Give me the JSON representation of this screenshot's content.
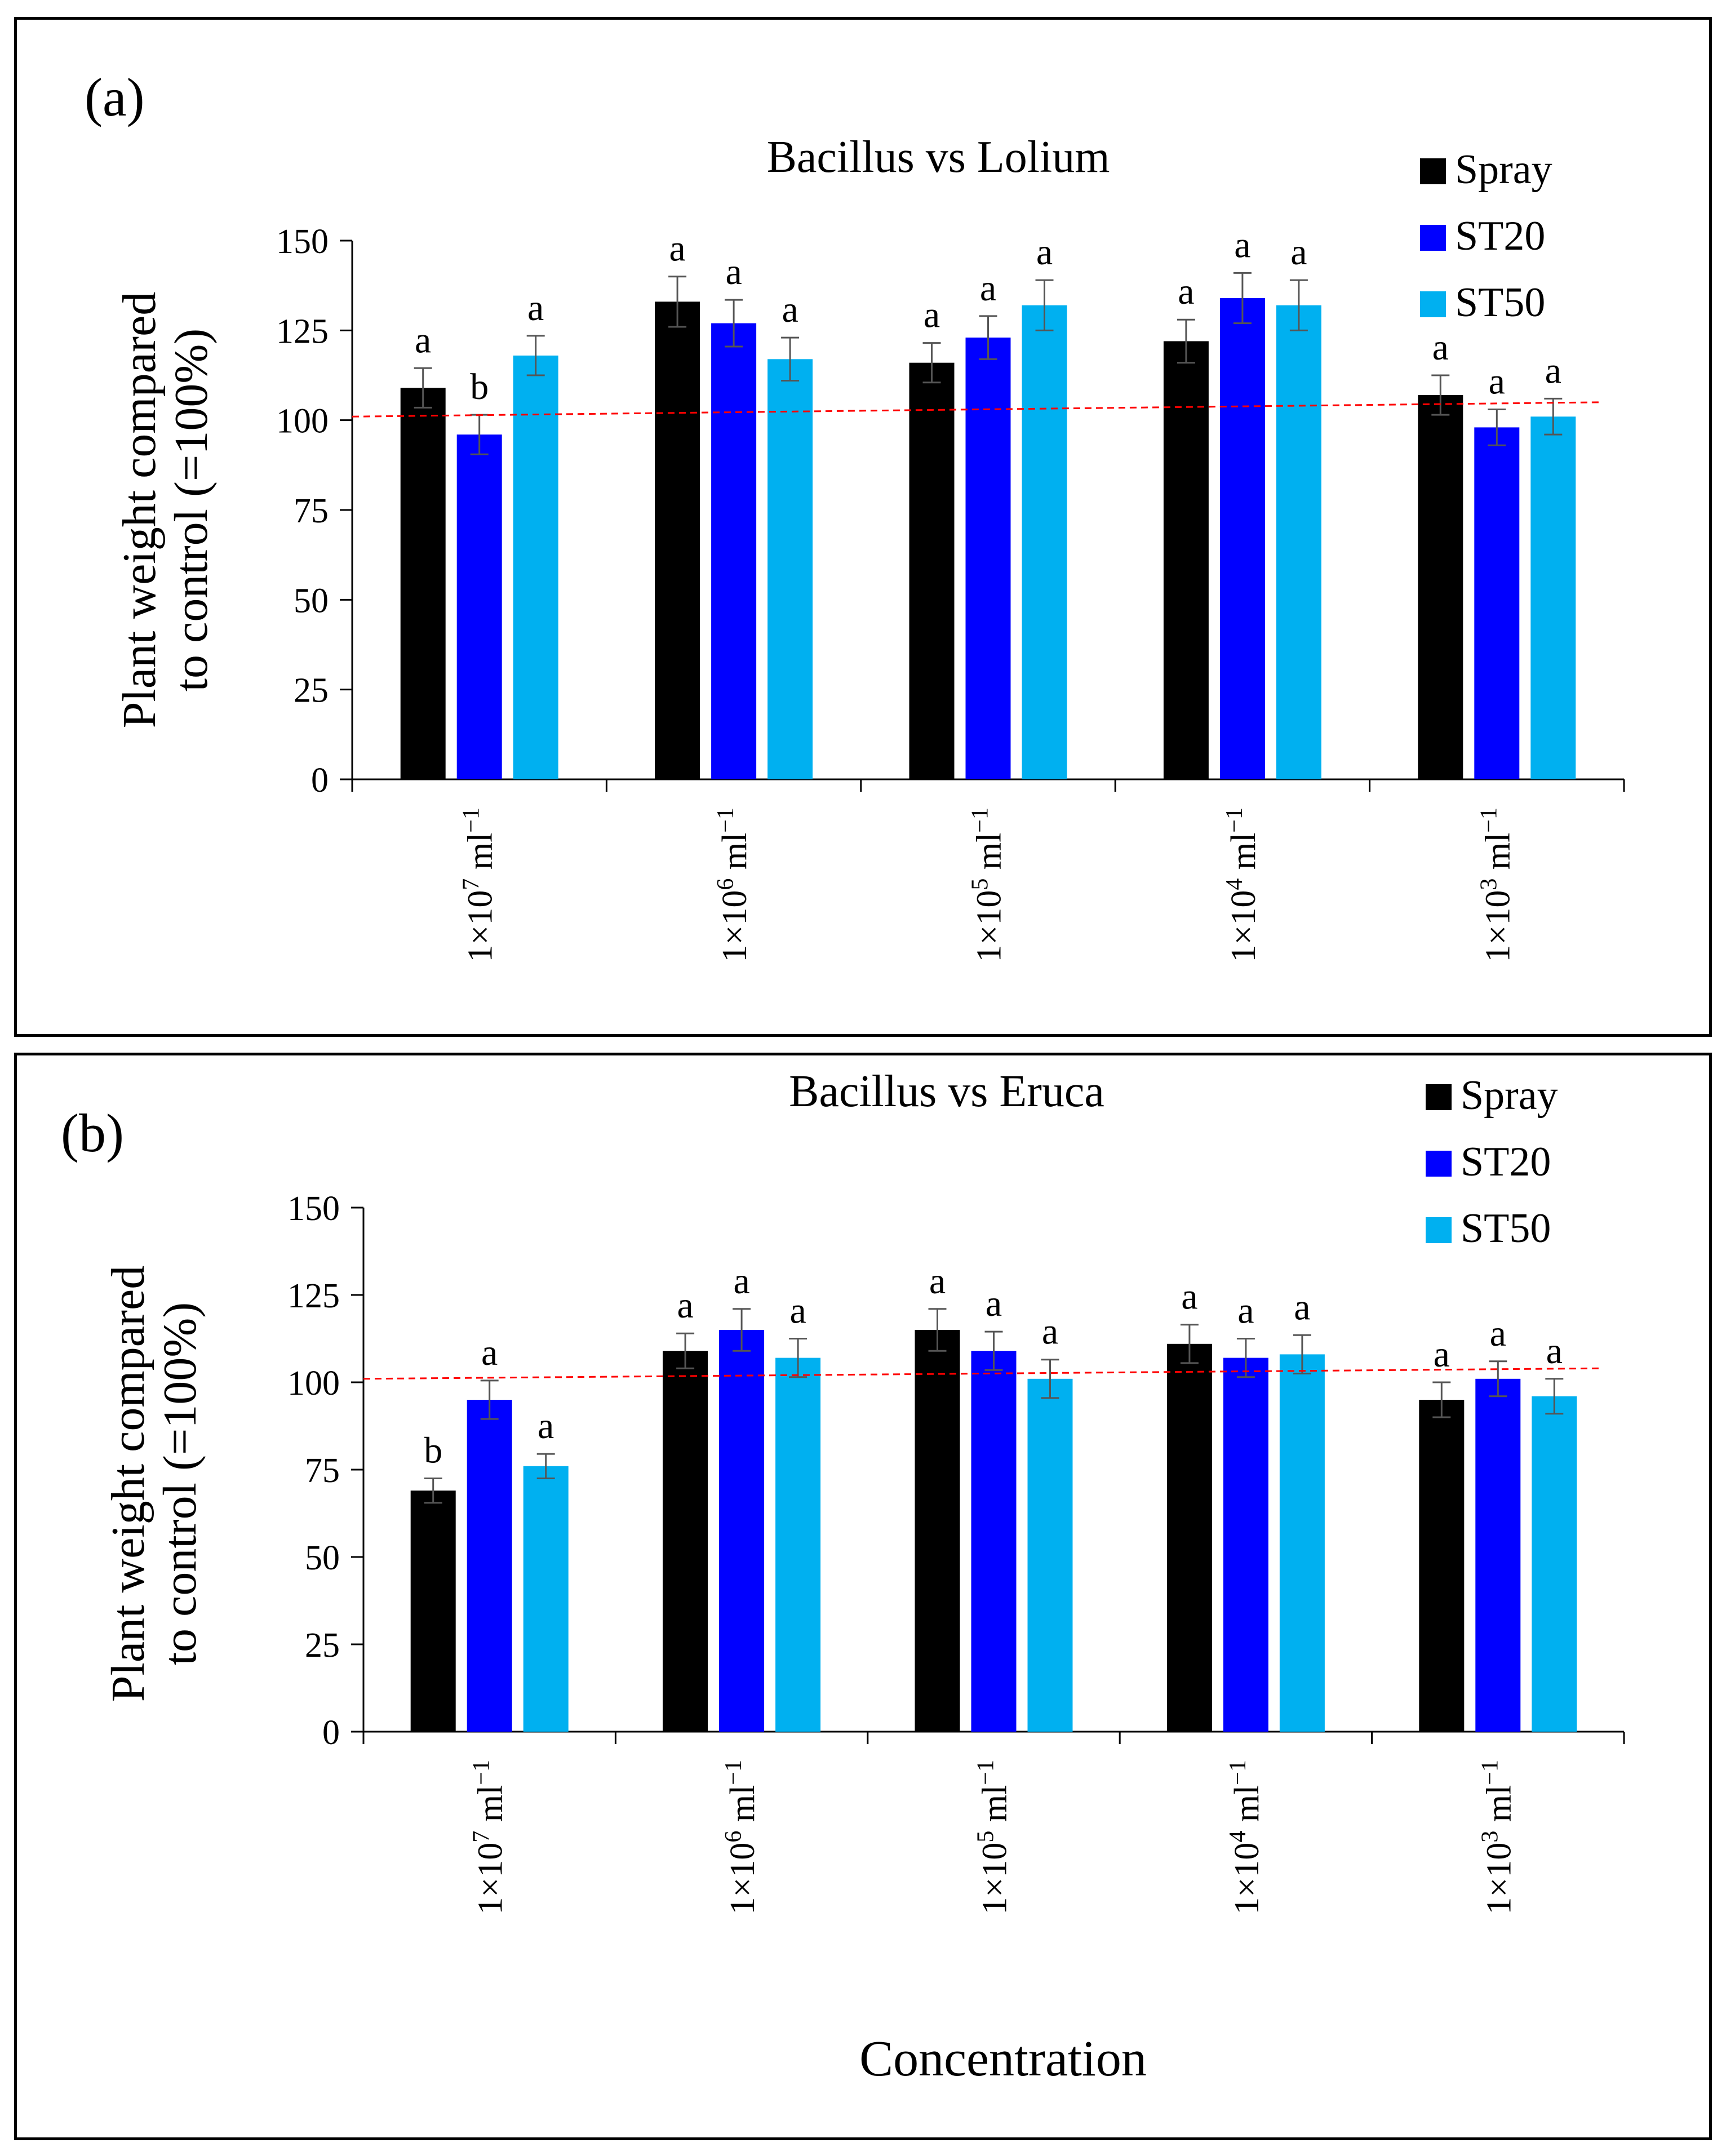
{
  "figure": {
    "x_axis_title": "Concentration"
  },
  "chart_data": [
    {
      "type": "bar",
      "panel_label": "(a)",
      "title": "Bacillus vs Lolium",
      "ylabel_line1": "Plant weight compared",
      "ylabel_line2": "to control (=100%)",
      "xlabel": "",
      "ylim": [
        0,
        150
      ],
      "yticks": [
        0,
        25,
        50,
        75,
        100,
        125,
        150
      ],
      "categories": [
        {
          "base": "1×10",
          "exp": "7",
          "unit": " ml",
          "unit_exp": "−1"
        },
        {
          "base": "1×10",
          "exp": "6",
          "unit": " ml",
          "unit_exp": "−1"
        },
        {
          "base": "1×10",
          "exp": "5",
          "unit": " ml",
          "unit_exp": "−1"
        },
        {
          "base": "1×10",
          "exp": "4",
          "unit": " ml",
          "unit_exp": "−1"
        },
        {
          "base": "1×10",
          "exp": "3",
          "unit": " ml",
          "unit_exp": "−1"
        }
      ],
      "series": [
        {
          "name": "Spray",
          "color": "#000000",
          "values": [
            109,
            133,
            116,
            122,
            107
          ],
          "errors": [
            5.5,
            7,
            5.5,
            6,
            5.5
          ],
          "letters": [
            "a",
            "a",
            "a",
            "a",
            "a"
          ]
        },
        {
          "name": "ST20",
          "color": "#0000ff",
          "values": [
            96,
            127,
            123,
            134,
            98
          ],
          "errors": [
            5.5,
            6.5,
            6,
            7,
            5
          ],
          "letters": [
            "b",
            "a",
            "a",
            "a",
            "a"
          ]
        },
        {
          "name": "ST50",
          "color": "#00b0f0",
          "values": [
            118,
            117,
            132,
            132,
            101
          ],
          "errors": [
            5.5,
            6,
            7,
            7,
            5
          ],
          "letters": [
            "a",
            "a",
            "a",
            "a",
            "a"
          ]
        }
      ],
      "reference_line": {
        "start": 101,
        "end": 105,
        "color": "#ff0000"
      },
      "legend_position": "top-right"
    },
    {
      "type": "bar",
      "panel_label": "(b)",
      "title": "Bacillus vs Eruca",
      "ylabel_line1": "Plant weight compared",
      "ylabel_line2": "to control (=100%)",
      "xlabel": "Concentration",
      "ylim": [
        0,
        150
      ],
      "yticks": [
        0,
        25,
        50,
        75,
        100,
        125,
        150
      ],
      "categories": [
        {
          "base": "1×10",
          "exp": "7",
          "unit": " ml",
          "unit_exp": "−1"
        },
        {
          "base": "1×10",
          "exp": "6",
          "unit": " ml",
          "unit_exp": "−1"
        },
        {
          "base": "1×10",
          "exp": "5",
          "unit": " ml",
          "unit_exp": "−1"
        },
        {
          "base": "1×10",
          "exp": "4",
          "unit": " ml",
          "unit_exp": "−1"
        },
        {
          "base": "1×10",
          "exp": "3",
          "unit": " ml",
          "unit_exp": "−1"
        }
      ],
      "series": [
        {
          "name": "Spray",
          "color": "#000000",
          "values": [
            69,
            109,
            115,
            111,
            95
          ],
          "errors": [
            3.5,
            5,
            6,
            5.5,
            5
          ],
          "letters": [
            "b",
            "a",
            "a",
            "a",
            "a"
          ]
        },
        {
          "name": "ST20",
          "color": "#0000ff",
          "values": [
            95,
            115,
            109,
            107,
            101
          ],
          "errors": [
            5.5,
            6,
            5.5,
            5.5,
            5
          ],
          "letters": [
            "a",
            "a",
            "a",
            "a",
            "a"
          ]
        },
        {
          "name": "ST50",
          "color": "#00b0f0",
          "values": [
            76,
            107,
            101,
            108,
            96
          ],
          "errors": [
            3.5,
            5.5,
            5.5,
            5.5,
            5
          ],
          "letters": [
            "a",
            "a",
            "a",
            "a",
            "a"
          ]
        }
      ],
      "reference_line": {
        "start": 101,
        "end": 104,
        "color": "#ff0000"
      },
      "legend_position": "top-right"
    }
  ]
}
